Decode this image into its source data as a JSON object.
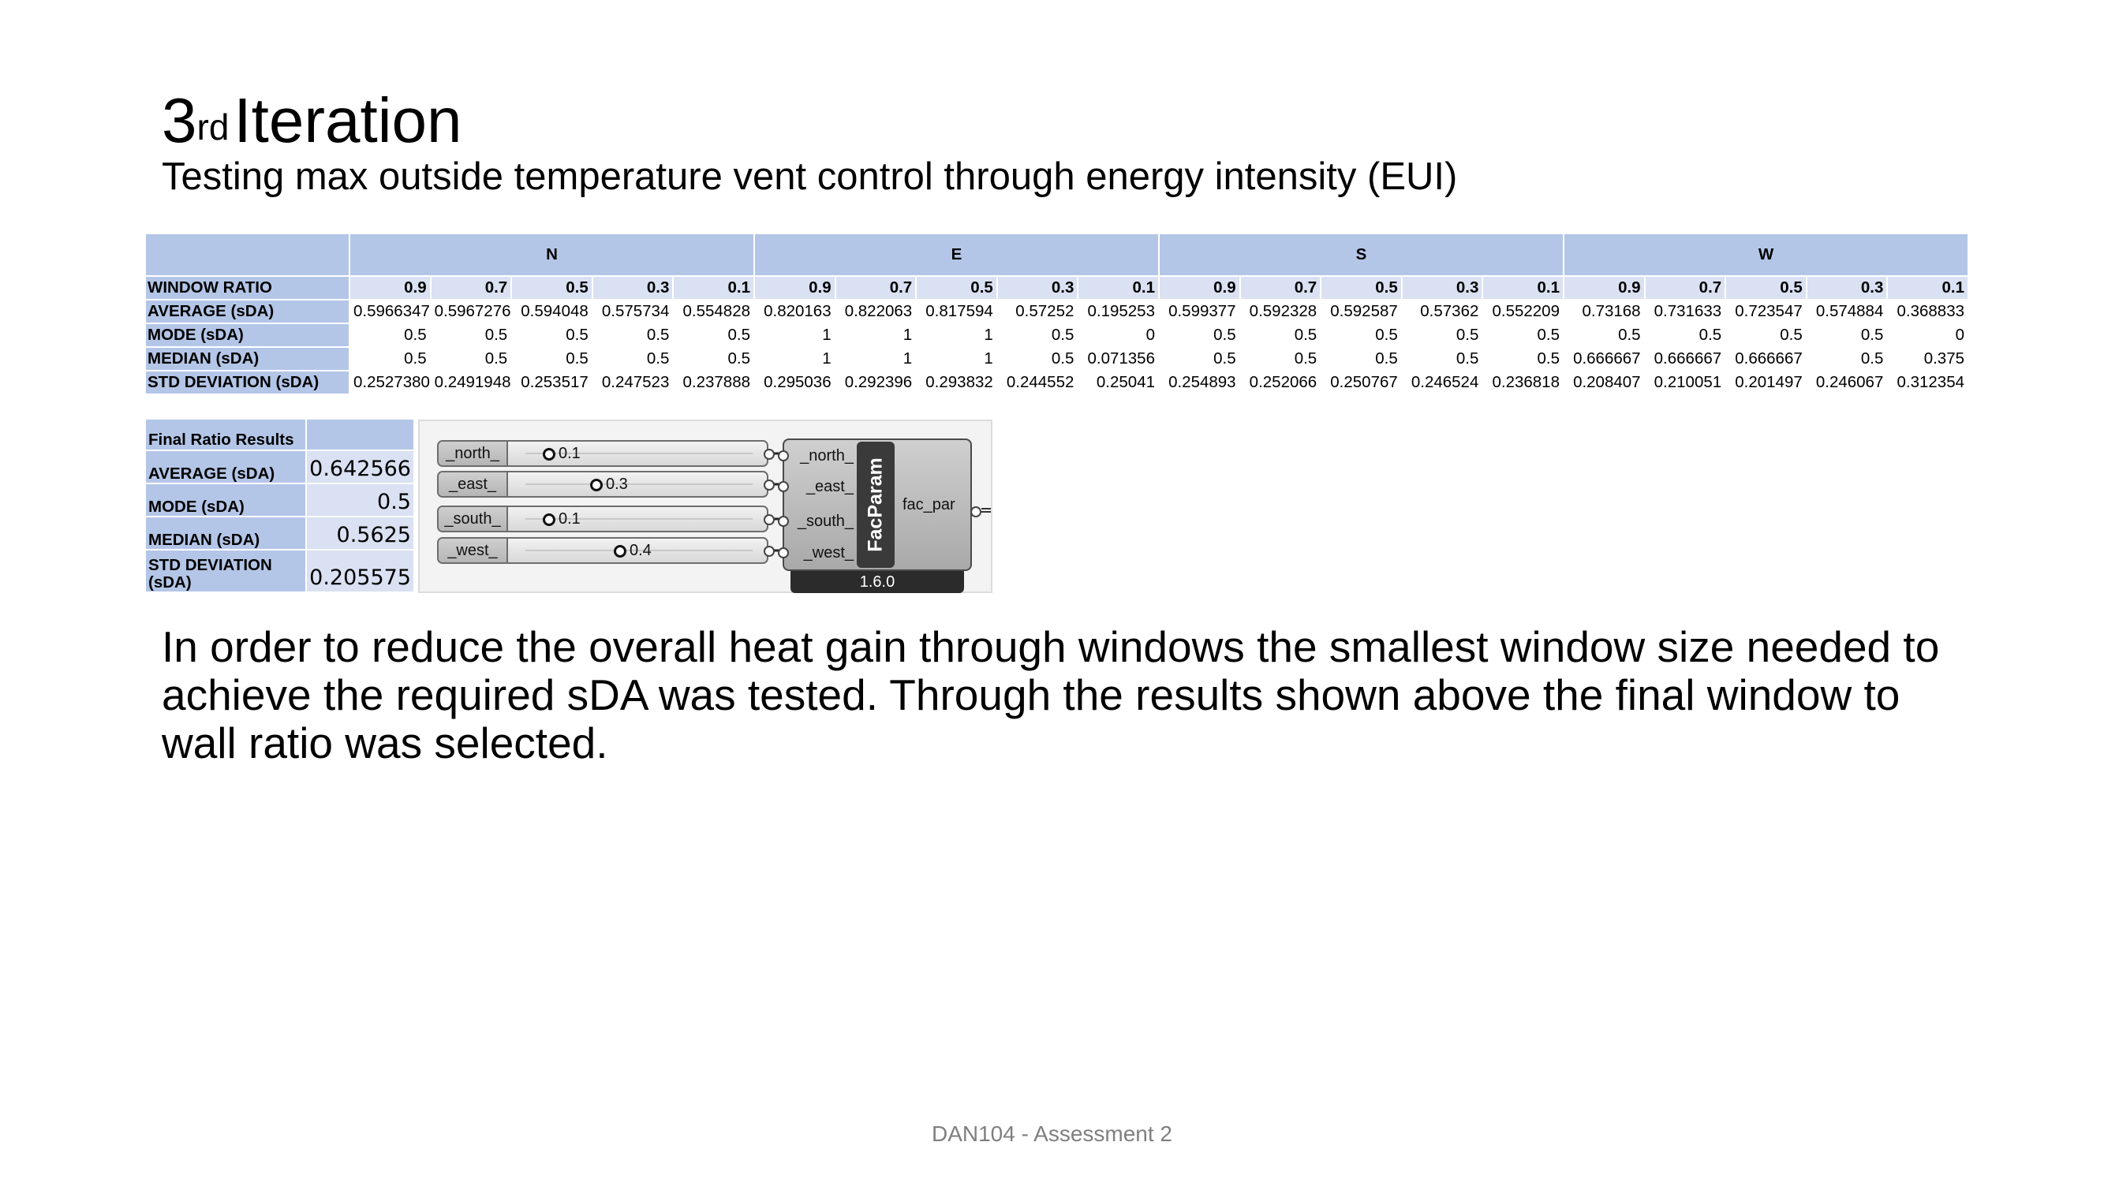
{
  "title": {
    "main_pre": "3",
    "main_sup": "rd",
    "main_post": "Iteration"
  },
  "subtitle": "Testing max outside temperature vent control through energy intensity (EUI)",
  "table": {
    "orientations": [
      "N",
      "E",
      "S",
      "W"
    ],
    "ratio_label": "WINDOW RATIO",
    "ratios": [
      "0.9",
      "0.7",
      "0.5",
      "0.3",
      "0.1",
      "0.9",
      "0.7",
      "0.5",
      "0.3",
      "0.1",
      "0.9",
      "0.7",
      "0.5",
      "0.3",
      "0.1",
      "0.9",
      "0.7",
      "0.5",
      "0.3",
      "0.1"
    ],
    "rows": [
      {
        "label": "AVERAGE (sDA)",
        "values": [
          "0.59663475",
          "0.59672766",
          "0.594048",
          "0.575734",
          "0.554828",
          "0.820163",
          "0.822063",
          "0.817594",
          "0.57252",
          "0.195253",
          "0.599377",
          "0.592328",
          "0.592587",
          "0.57362",
          "0.552209",
          "0.73168",
          "0.731633",
          "0.723547",
          "0.574884",
          "0.368833"
        ]
      },
      {
        "label": "MODE (sDA)",
        "values": [
          "0.5",
          "0.5",
          "0.5",
          "0.5",
          "0.5",
          "1",
          "1",
          "1",
          "0.5",
          "0",
          "0.5",
          "0.5",
          "0.5",
          "0.5",
          "0.5",
          "0.5",
          "0.5",
          "0.5",
          "0.5",
          "0"
        ]
      },
      {
        "label": "MEDIAN (sDA)",
        "values": [
          "0.5",
          "0.5",
          "0.5",
          "0.5",
          "0.5",
          "1",
          "1",
          "1",
          "0.5",
          "0.071356",
          "0.5",
          "0.5",
          "0.5",
          "0.5",
          "0.5",
          "0.666667",
          "0.666667",
          "0.666667",
          "0.5",
          "0.375"
        ]
      },
      {
        "label": "STD DEVIATION (sDA)",
        "values": [
          "0.25273802",
          "0.24919487",
          "0.253517",
          "0.247523",
          "0.237888",
          "0.295036",
          "0.292396",
          "0.293832",
          "0.244552",
          "0.25041",
          "0.254893",
          "0.252066",
          "0.250767",
          "0.246524",
          "0.236818",
          "0.208407",
          "0.210051",
          "0.201497",
          "0.246067",
          "0.312354"
        ]
      }
    ]
  },
  "final": {
    "header": "Final Ratio Results",
    "rows": [
      {
        "label": "AVERAGE (sDA)",
        "value": "0.642566"
      },
      {
        "label": "MODE (sDA)",
        "value": "0.5"
      },
      {
        "label": "MEDIAN (sDA)",
        "value": "0.5625"
      },
      {
        "label": "STD DEVIATION (sDA)",
        "value": "0.205575"
      }
    ]
  },
  "component": {
    "sliders": [
      {
        "name": "_north_",
        "value": "0.1",
        "level": 0.1
      },
      {
        "name": "_east_",
        "value": "0.3",
        "level": 0.3
      },
      {
        "name": "_south_",
        "value": "0.1",
        "level": 0.1
      },
      {
        "name": "_west_",
        "value": "0.4",
        "level": 0.4
      }
    ],
    "inputs": [
      "_north_",
      "_east_",
      "_south_",
      "_west_"
    ],
    "name": "FacParam",
    "output": "fac_par",
    "version": "1.6.0"
  },
  "body": "In order to reduce the overall heat gain through windows the smallest window size needed to achieve the required sDA was tested. Through the results shown above the final window to wall ratio was selected.",
  "footer": "DAN104 - Assessment  2"
}
